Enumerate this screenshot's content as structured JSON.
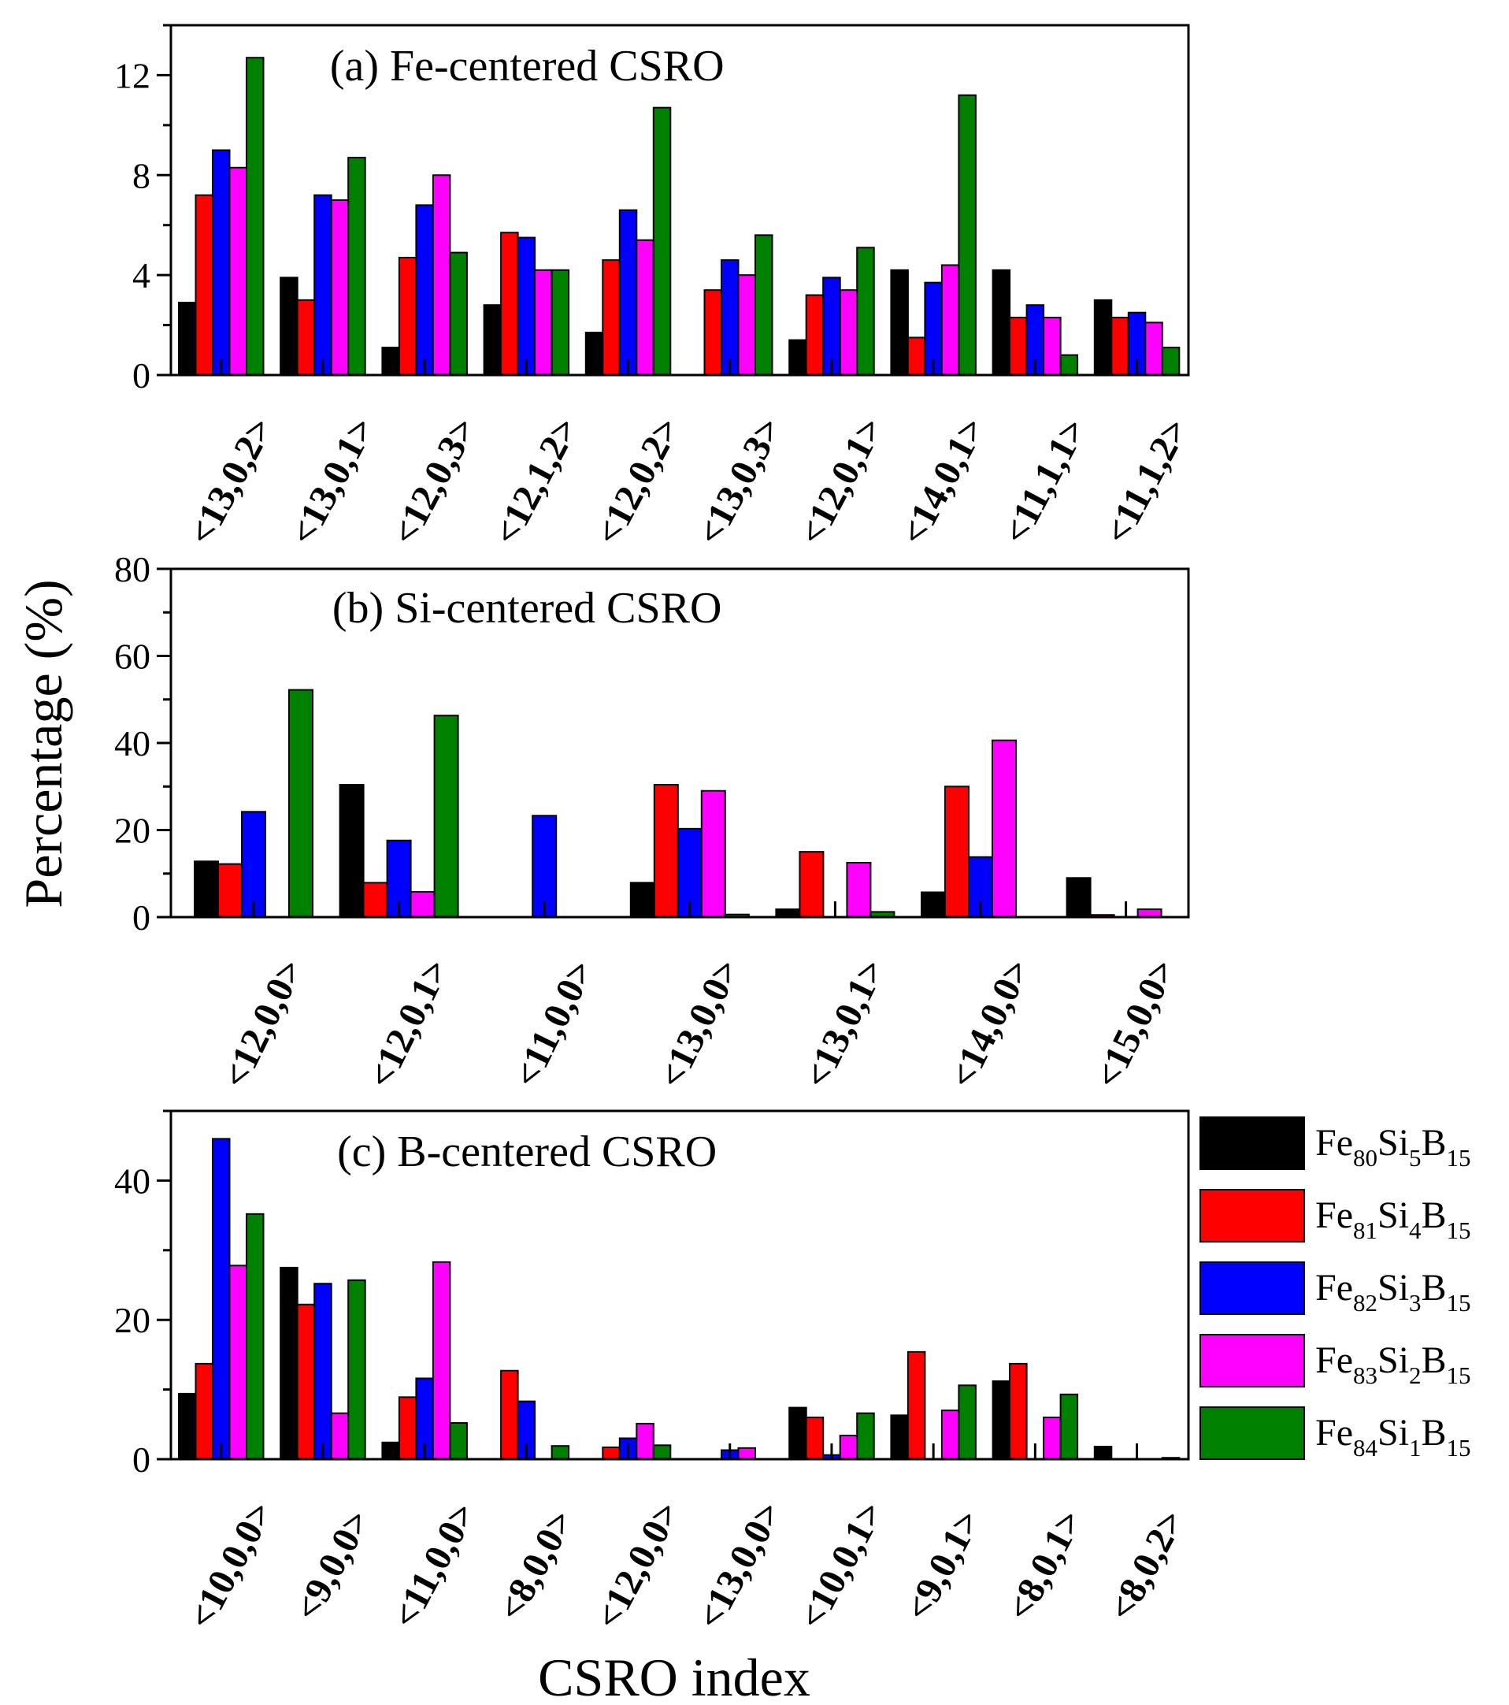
{
  "figure": {
    "ylabel": "Percentage (%)",
    "xlabel": "CSRO index"
  },
  "legend": [
    {
      "base": "Fe",
      "s1": "80",
      "mid": "Si",
      "s2": "5",
      "end": "B",
      "s3": "15",
      "color": "#000000"
    },
    {
      "base": "Fe",
      "s1": "81",
      "mid": "Si",
      "s2": "4",
      "end": "B",
      "s3": "15",
      "color": "#ff0000"
    },
    {
      "base": "Fe",
      "s1": "82",
      "mid": "Si",
      "s2": "3",
      "end": "B",
      "s3": "15",
      "color": "#0000ff"
    },
    {
      "base": "Fe",
      "s1": "83",
      "mid": "Si",
      "s2": "2",
      "end": "B",
      "s3": "15",
      "color": "#ff00ff"
    },
    {
      "base": "Fe",
      "s1": "84",
      "mid": "Si",
      "s2": "1",
      "end": "B",
      "s3": "15",
      "color": "#008000"
    }
  ],
  "chart_data": [
    {
      "type": "bar",
      "title": "(a) Fe-centered CSRO",
      "xlabel": "",
      "ylabel": "Percentage (%)",
      "ylim": [
        0,
        14
      ],
      "yticks": [
        0,
        4,
        8,
        12
      ],
      "categories": [
        "<13,0,2>",
        "<13,0,1>",
        "<12,0,3>",
        "<12,1,2>",
        "<12,0,2>",
        "<13,0,3>",
        "<12,0,1>",
        "<14,0,1>",
        "<11,1,1>",
        "<11,1,2>"
      ],
      "series": [
        {
          "name": "Fe80Si5B15",
          "values": [
            2.9,
            3.9,
            1.1,
            2.8,
            1.7,
            0,
            1.4,
            4.2,
            4.2,
            3.0
          ]
        },
        {
          "name": "Fe81Si4B15",
          "values": [
            7.2,
            3.0,
            4.7,
            5.7,
            4.6,
            3.4,
            3.2,
            1.5,
            2.3,
            2.3
          ]
        },
        {
          "name": "Fe82Si3B15",
          "values": [
            9.0,
            7.2,
            6.8,
            5.5,
            6.6,
            4.6,
            3.9,
            3.7,
            2.8,
            2.5
          ]
        },
        {
          "name": "Fe83Si2B15",
          "values": [
            8.3,
            7.0,
            8.0,
            4.2,
            5.4,
            4.0,
            3.4,
            4.4,
            2.3,
            2.1
          ]
        },
        {
          "name": "Fe84Si1B15",
          "values": [
            12.7,
            8.7,
            4.9,
            4.2,
            10.7,
            5.6,
            5.1,
            11.2,
            0.8,
            1.1
          ]
        }
      ]
    },
    {
      "type": "bar",
      "title": "(b) Si-centered CSRO",
      "xlabel": "",
      "ylabel": "Percentage (%)",
      "ylim": [
        0,
        80
      ],
      "yticks": [
        0,
        20,
        40,
        60,
        80
      ],
      "categories": [
        "<12,0,0>",
        "<12,0,1>",
        "<11,0,0>",
        "<13,0,0>",
        "<13,0,1>",
        "<14,0,0>",
        "<15,0,0>"
      ],
      "series": [
        {
          "name": "Fe80Si5B15",
          "values": [
            12.8,
            30.4,
            0,
            7.9,
            1.8,
            5.7,
            9.0
          ]
        },
        {
          "name": "Fe81Si4B15",
          "values": [
            12.2,
            7.9,
            0,
            30.4,
            15.0,
            30.0,
            0.5
          ]
        },
        {
          "name": "Fe82Si3B15",
          "values": [
            24.2,
            17.6,
            23.3,
            20.3,
            0,
            13.8,
            0
          ]
        },
        {
          "name": "Fe83Si2B15",
          "values": [
            0,
            5.8,
            0,
            29.0,
            12.5,
            40.6,
            1.8
          ]
        },
        {
          "name": "Fe84Si1B15",
          "values": [
            52.2,
            46.3,
            0,
            0.6,
            1.2,
            0,
            0
          ]
        }
      ]
    },
    {
      "type": "bar",
      "title": "(c) B-centered CSRO",
      "xlabel": "CSRO index",
      "ylabel": "Percentage (%)",
      "ylim": [
        0,
        50
      ],
      "yticks": [
        0,
        20,
        40
      ],
      "categories": [
        "<10,0,0>",
        "<9,0,0>",
        "<11,0,0>",
        "<8,0,0>",
        "<12,0,0>",
        "<13,0,0>",
        "<10,0,1>",
        "<9,0,1>",
        "<8,0,1>",
        "<8,0,2>"
      ],
      "series": [
        {
          "name": "Fe80Si5B15",
          "values": [
            9.4,
            27.5,
            2.4,
            0,
            0,
            0,
            7.4,
            6.3,
            11.2,
            1.8
          ]
        },
        {
          "name": "Fe81Si4B15",
          "values": [
            13.7,
            22.2,
            8.9,
            12.7,
            1.7,
            0,
            6.0,
            15.4,
            13.7,
            0
          ]
        },
        {
          "name": "Fe82Si3B15",
          "values": [
            46.0,
            25.2,
            11.6,
            8.3,
            3.0,
            1.3,
            0.6,
            0,
            0,
            0
          ]
        },
        {
          "name": "Fe83Si2B15",
          "values": [
            27.8,
            6.6,
            28.3,
            0,
            5.1,
            1.6,
            3.4,
            7.0,
            6.0,
            0
          ]
        },
        {
          "name": "Fe84Si1B15",
          "values": [
            35.2,
            25.7,
            5.2,
            1.9,
            2.0,
            0,
            6.6,
            10.6,
            9.3,
            0.2
          ]
        }
      ]
    }
  ]
}
